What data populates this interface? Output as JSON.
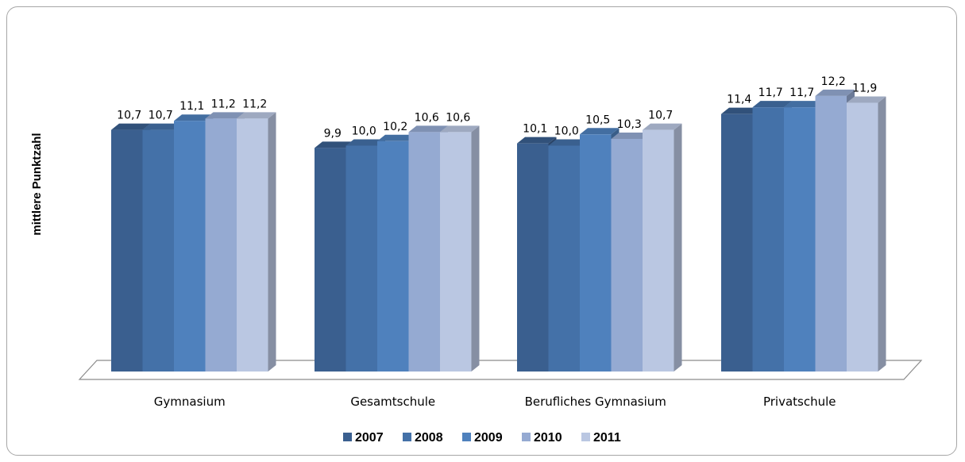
{
  "chart_data": {
    "type": "bar",
    "style": "3d-clustered-column",
    "ylabel": "mittlere Punktzahl",
    "categories": [
      "Gymnasium",
      "Gesamtschule",
      "Berufliches Gymnasium",
      "Privatschule"
    ],
    "series": [
      {
        "name": "2007",
        "color": "#3a5f8f",
        "values": [
          10.7,
          9.9,
          10.1,
          11.4
        ],
        "labels": [
          "10,7",
          "9,9",
          "10,1",
          "11,4"
        ]
      },
      {
        "name": "2008",
        "color": "#4471a8",
        "values": [
          10.7,
          10.0,
          10.0,
          11.7
        ],
        "labels": [
          "10,7",
          "10,0",
          "10,0",
          "11,7"
        ]
      },
      {
        "name": "2009",
        "color": "#4f81bd",
        "values": [
          11.1,
          10.2,
          10.5,
          11.7
        ],
        "labels": [
          "11,1",
          "10,2",
          "10,5",
          "11,7"
        ]
      },
      {
        "name": "2010",
        "color": "#95aad2",
        "values": [
          11.2,
          10.6,
          10.3,
          12.2
        ],
        "labels": [
          "11,2",
          "10,6",
          "10,3",
          "12,2"
        ]
      },
      {
        "name": "2011",
        "color": "#bac7e2",
        "values": [
          11.2,
          10.6,
          10.7,
          11.9
        ],
        "labels": [
          "11,2",
          "10,6",
          "10,7",
          "11,9"
        ]
      }
    ],
    "legend_position": "bottom",
    "grid": false
  }
}
